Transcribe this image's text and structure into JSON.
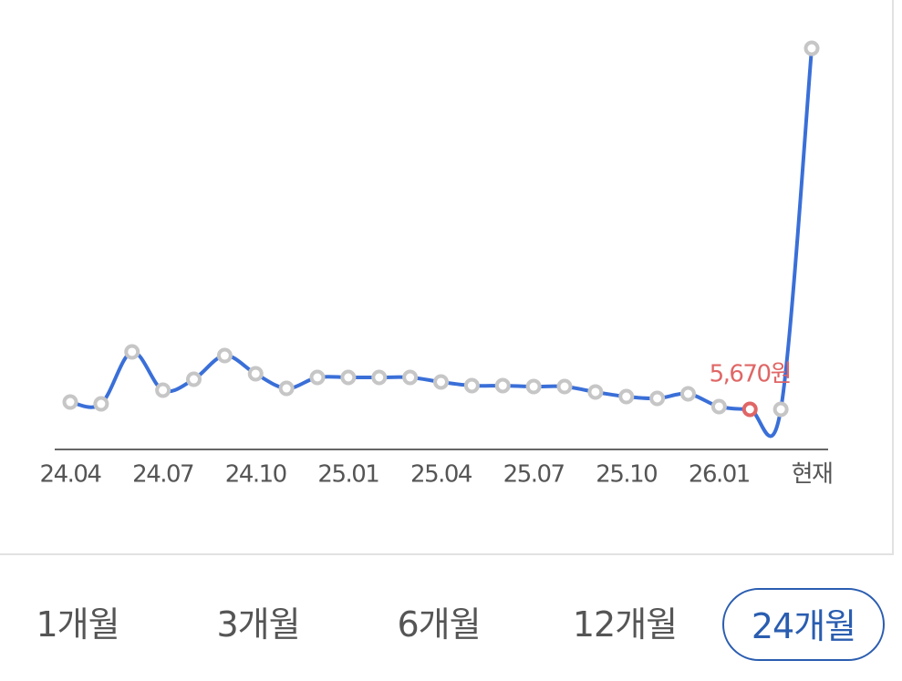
{
  "chart_data": {
    "type": "line",
    "categories": [
      "24.04",
      null,
      null,
      "24.07",
      null,
      null,
      "24.10",
      null,
      null,
      "25.01",
      null,
      null,
      "25.04",
      null,
      null,
      "25.07",
      null,
      null,
      "25.10",
      null,
      null,
      "26.01",
      null,
      null,
      "현재"
    ],
    "series": [
      {
        "color": "#3a6fd8",
        "marker_color": "#c6c6c6",
        "highlight_color": "#e06666",
        "values": [
          6700,
          6440,
          13790,
          8380,
          9920,
          13270,
          10700,
          8630,
          10180,
          10180,
          10180,
          10180,
          9540,
          9020,
          9020,
          8890,
          8890,
          8120,
          7470,
          7220,
          7860,
          6060,
          5670,
          5670,
          56700
        ],
        "value_labels": [
          null,
          null,
          null,
          null,
          null,
          null,
          null,
          null,
          null,
          null,
          null,
          null,
          null,
          null,
          null,
          null,
          null,
          null,
          null,
          null,
          null,
          null,
          "5,670원",
          null,
          null
        ]
      }
    ]
  },
  "tabs": {
    "options": [
      "1개월",
      "3개월",
      "6개월",
      "12개월",
      "24개월"
    ],
    "selected": 4
  }
}
